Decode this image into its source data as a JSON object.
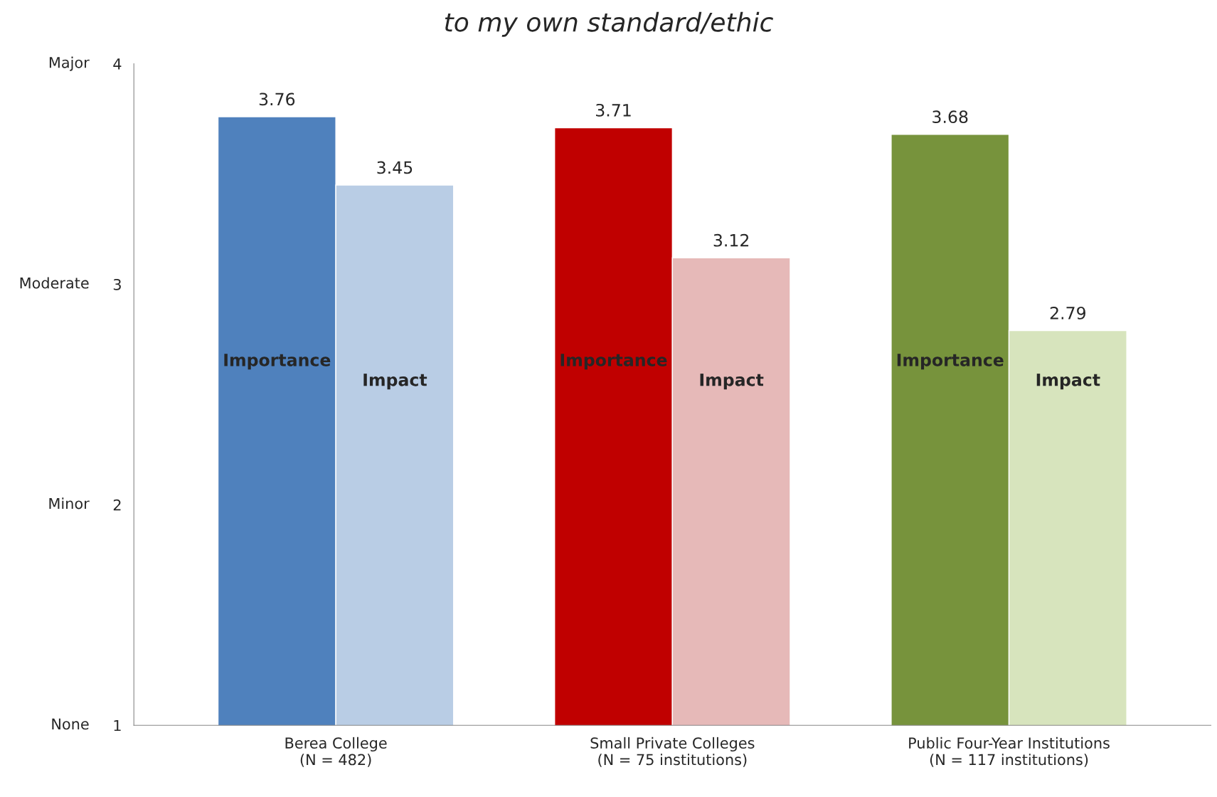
{
  "chart_data": {
    "type": "bar",
    "title": "to my own standard/ethic",
    "categories": [
      "Berea College\n(N = 482)",
      "Small Private Colleges\n(N = 75 institutions)",
      "Public Four-Year Institutions\n(N = 117 institutions)"
    ],
    "series": [
      {
        "name": "Importance",
        "colors": [
          "#4f81bd",
          "#c00000",
          "#77933c"
        ],
        "values": [
          3.76,
          3.71,
          3.68
        ]
      },
      {
        "name": "Impact",
        "colors": [
          "#b9cde5",
          "#e6b9b8",
          "#d7e4bd"
        ],
        "values": [
          3.45,
          3.12,
          2.79
        ]
      }
    ],
    "ylim": [
      1,
      4
    ],
    "yticks": [
      1,
      2,
      3,
      4
    ],
    "annotations": [
      "None",
      "Minor",
      "Moderate",
      "Major"
    ],
    "data_labels": true,
    "grid": false,
    "legend": false
  }
}
